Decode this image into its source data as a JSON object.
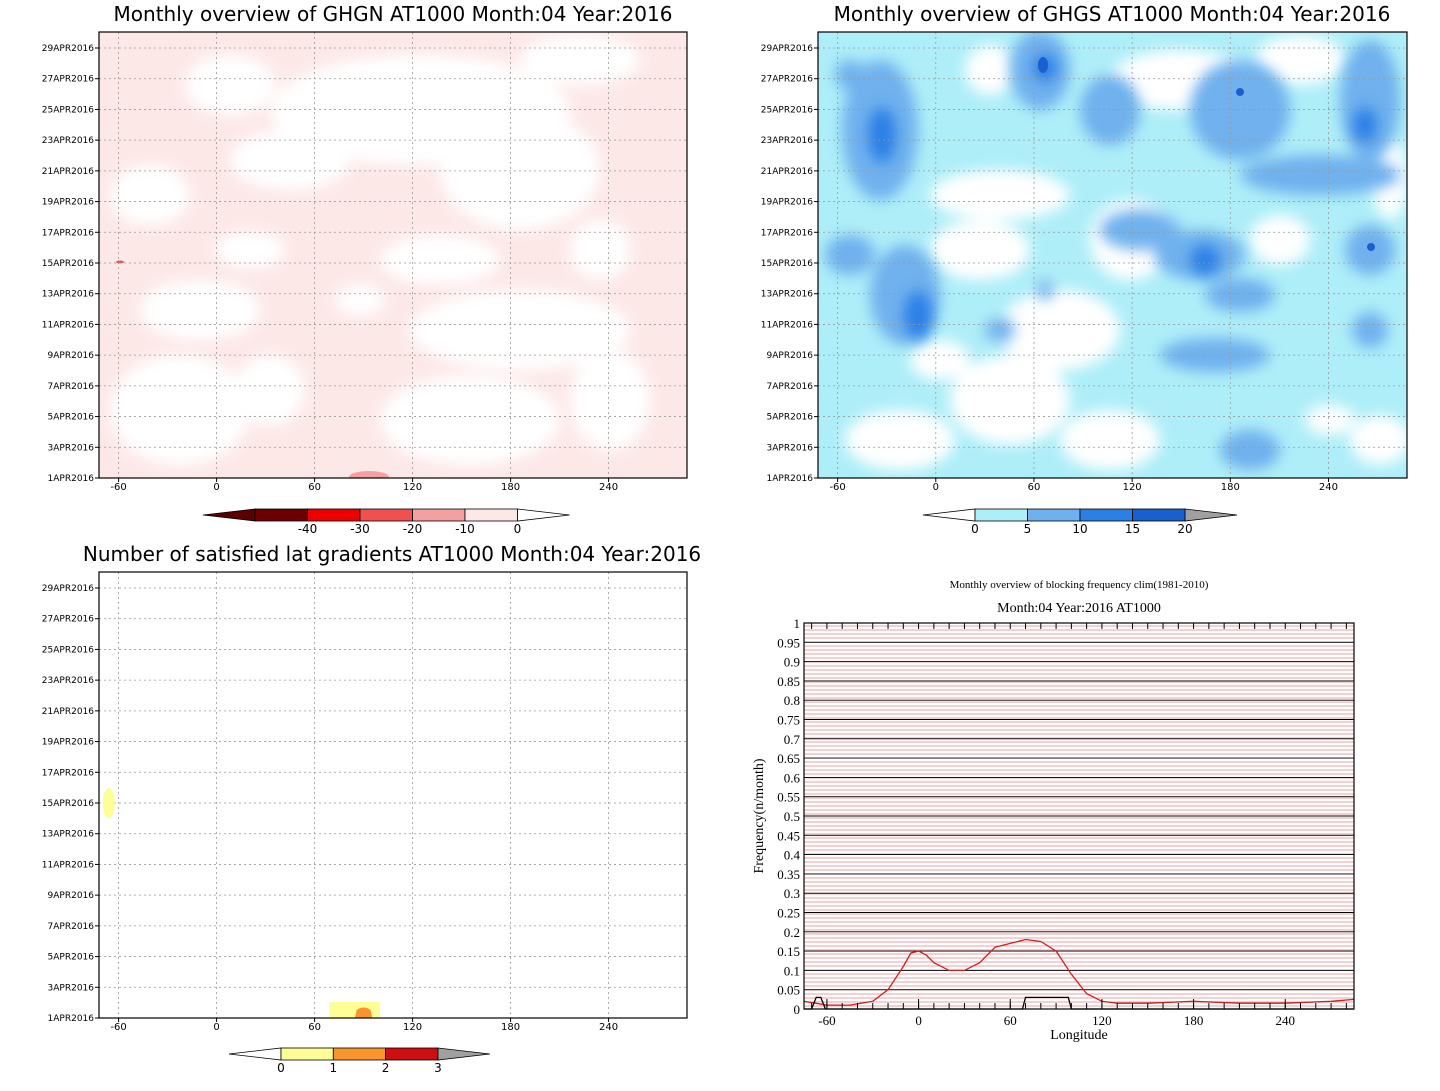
{
  "chart_data": [
    {
      "id": "ghgn",
      "type": "heatmap",
      "title": "Monthly overview of GHGN AT1000 Month:04 Year:2016",
      "x_ticks": [
        -60,
        0,
        60,
        120,
        180,
        240
      ],
      "xlim": [
        -72,
        288
      ],
      "y_ticks": [
        "1APR2016",
        "3APR2016",
        "5APR2016",
        "7APR2016",
        "9APR2016",
        "11APR2016",
        "13APR2016",
        "15APR2016",
        "17APR2016",
        "19APR2016",
        "21APR2016",
        "23APR2016",
        "25APR2016",
        "27APR2016",
        "29APR2016"
      ],
      "colorbar": {
        "labels": [
          "-40",
          "-30",
          "-20",
          "-10",
          "0"
        ],
        "colors": [
          "#6b0000",
          "#ef0000",
          "#ef5050",
          "#f5a0a0",
          "#fde8e8"
        ],
        "arrow_low": "#5a0000",
        "arrow_high": "#ffffff"
      },
      "shaded_color": "#fde8e8",
      "notes": "Weakly negative (-10..0) values cover most of the domain; small -20..-10 patch near lon 84, 1APR."
    },
    {
      "id": "ghgs",
      "type": "heatmap",
      "title": "Monthly overview of GHGS AT1000 Month:04 Year:2016",
      "x_ticks": [
        -60,
        0,
        60,
        120,
        180,
        240
      ],
      "xlim": [
        -72,
        288
      ],
      "y_ticks": [
        "1APR2016",
        "3APR2016",
        "5APR2016",
        "7APR2016",
        "9APR2016",
        "11APR2016",
        "13APR2016",
        "15APR2016",
        "17APR2016",
        "19APR2016",
        "21APR2016",
        "23APR2016",
        "25APR2016",
        "27APR2016",
        "29APR2016"
      ],
      "colorbar": {
        "labels": [
          "0",
          "5",
          "10",
          "15",
          "20"
        ],
        "colors": [
          "#aeeef8",
          "#6fb1ee",
          "#2b7fe6",
          "#1a5fcf"
        ],
        "arrow_low": "#ffffff",
        "arrow_high": "#a0a0a0"
      }
    },
    {
      "id": "gradients",
      "type": "heatmap",
      "title": "Number of satisfied lat gradients AT1000 Month:04 Year:2016",
      "x_ticks": [
        -60,
        0,
        60,
        120,
        180,
        240
      ],
      "xlim": [
        -72,
        288
      ],
      "y_ticks": [
        "1APR2016",
        "3APR2016",
        "5APR2016",
        "7APR2016",
        "9APR2016",
        "11APR2016",
        "13APR2016",
        "15APR2016",
        "17APR2016",
        "19APR2016",
        "21APR2016",
        "23APR2016",
        "25APR2016",
        "27APR2016",
        "29APR2016"
      ],
      "colorbar": {
        "labels": [
          "0",
          "1",
          "2",
          "3"
        ],
        "colors": [
          "#fefe96",
          "#f9952e",
          "#cd0f0f"
        ],
        "arrow_low": "#ffffff",
        "arrow_high": "#a0a0a0"
      },
      "events": [
        {
          "lon": -66,
          "date": "15APR2016",
          "value": 1
        },
        {
          "lon": 84,
          "date": "1APR2016",
          "value": 1
        },
        {
          "lon": 90,
          "date": "1APR2016",
          "value": 2
        }
      ]
    },
    {
      "id": "blocking",
      "type": "line",
      "title": "Month:04 Year:2016  AT1000",
      "subtitle": "Monthly overview of blocking frequency clim(1981-2010)",
      "xlabel": "Longitude",
      "ylabel": "Frequency(n/month)",
      "xlim": [
        -75,
        285
      ],
      "ylim": [
        0,
        1
      ],
      "x_ticks": [
        -60,
        0,
        60,
        120,
        180,
        240
      ],
      "y_ticks": [
        "0",
        "0.05",
        "0.1",
        "0.15",
        "0.2",
        "0.25",
        "0.3",
        "0.35",
        "0.4",
        "0.45",
        "0.5",
        "0.55",
        "0.6",
        "0.65",
        "0.7",
        "0.75",
        "0.8",
        "0.85",
        "0.9",
        "0.95",
        "1"
      ],
      "series": [
        {
          "color": "#d21e1e",
          "x": [
            -75,
            -60,
            -45,
            -30,
            -20,
            -10,
            -5,
            0,
            5,
            10,
            20,
            30,
            40,
            50,
            60,
            70,
            80,
            90,
            100,
            110,
            120,
            130,
            150,
            180,
            210,
            240,
            270,
            285
          ],
          "y": [
            0.02,
            0.01,
            0.01,
            0.02,
            0.05,
            0.11,
            0.145,
            0.15,
            0.14,
            0.12,
            0.1,
            0.1,
            0.12,
            0.16,
            0.17,
            0.18,
            0.175,
            0.15,
            0.09,
            0.04,
            0.02,
            0.015,
            0.015,
            0.02,
            0.015,
            0.015,
            0.02,
            0.025
          ]
        },
        {
          "color": "#000000",
          "x": [
            -75,
            -70,
            -67,
            -64,
            -61,
            -58,
            -55,
            68,
            70,
            72,
            96,
            98,
            100,
            285
          ],
          "y": [
            0,
            0,
            0.03,
            0.03,
            0,
            0,
            0,
            0,
            0.03,
            0.03,
            0.03,
            0.03,
            0,
            0
          ]
        }
      ]
    }
  ]
}
